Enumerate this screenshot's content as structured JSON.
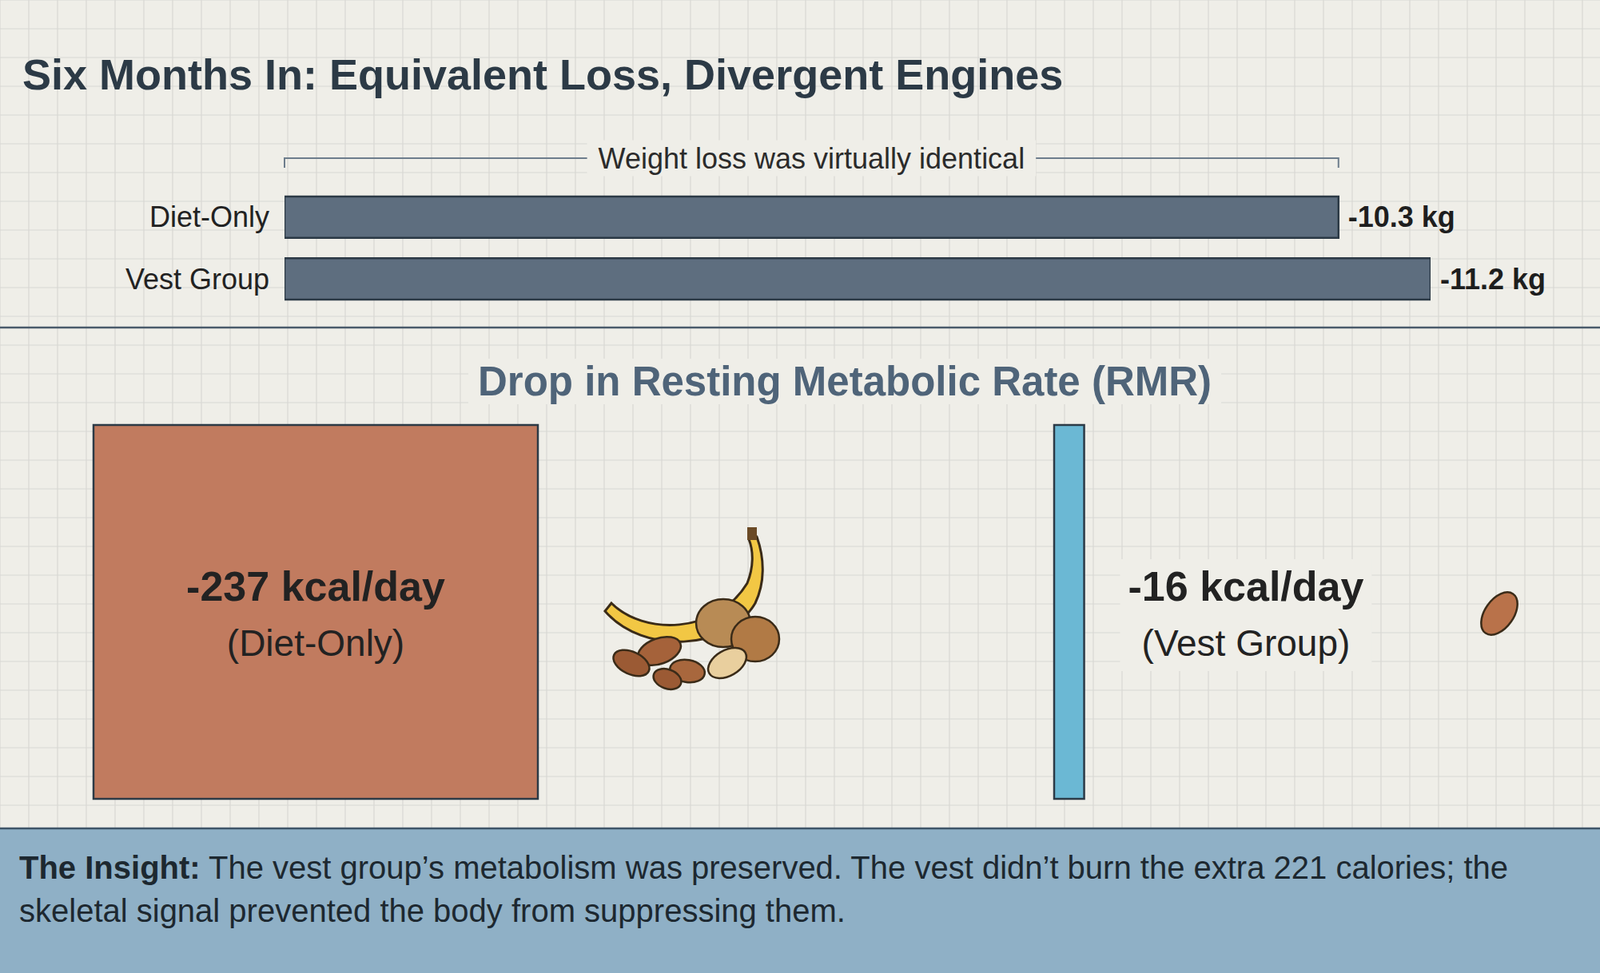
{
  "title": "Six Months In: Equivalent Loss, Divergent Engines",
  "chart_data": [
    {
      "type": "bar",
      "orientation": "horizontal",
      "categories": [
        "Diet-Only",
        "Vest Group"
      ],
      "values": [
        -10.3,
        -11.2
      ],
      "value_labels": [
        "-10.3 kg",
        "-11.2 kg"
      ],
      "color": "#5e6e7f",
      "xlim": [
        0,
        -11.2
      ],
      "tick_labels": false,
      "data_labels": true,
      "annotation": "Weight loss was virtually identical"
    },
    {
      "type": "bar",
      "orientation": "horizontal",
      "title": "Drop in Resting Metabolic Rate (RMR)",
      "categories": [
        "(Diet-Only)",
        "(Vest Group)"
      ],
      "values": [
        -237,
        -16
      ],
      "value_labels": [
        "-237 kcal/day",
        "-16 kcal/day"
      ],
      "colors": [
        "#c17b5f",
        "#6bb8d4"
      ],
      "xlim": [
        0,
        -237
      ],
      "tick_labels": false,
      "data_labels": true
    }
  ],
  "insight": {
    "label": "The Insight:",
    "text": "The vest group’s metabolism was preserved. The vest didn’t burn the extra 221 calories; the skeletal signal prevented the body from suppressing them."
  }
}
